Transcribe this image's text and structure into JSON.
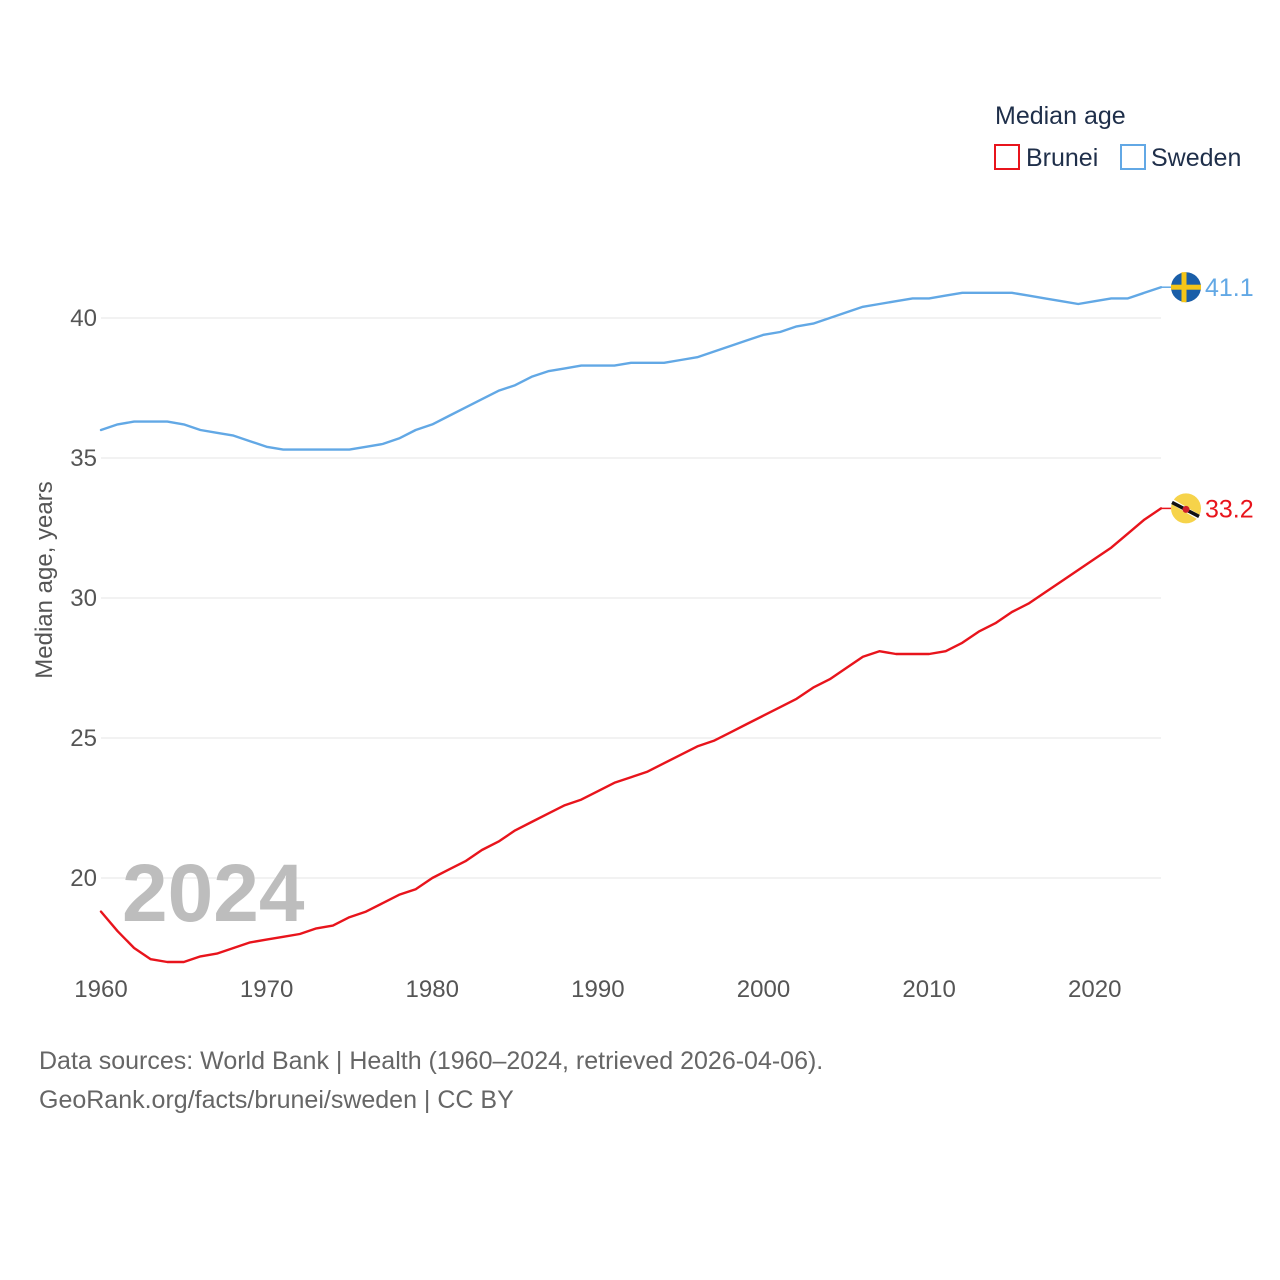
{
  "chart_data": {
    "type": "line",
    "title": "",
    "legend_title": "Median age",
    "ylabel": "Median age, years",
    "xlabel": "",
    "xlim": [
      1960,
      2024
    ],
    "ylim": [
      16,
      42.5
    ],
    "yticks": [
      20,
      25,
      30,
      35,
      40
    ],
    "xticks": [
      1960,
      1970,
      1980,
      1990,
      2000,
      2010,
      2020
    ],
    "year_label": "2024",
    "legend_position": "top-right",
    "grid": true,
    "x": [
      1960,
      1961,
      1962,
      1963,
      1964,
      1965,
      1966,
      1967,
      1968,
      1969,
      1970,
      1971,
      1972,
      1973,
      1974,
      1975,
      1976,
      1977,
      1978,
      1979,
      1980,
      1981,
      1982,
      1983,
      1984,
      1985,
      1986,
      1987,
      1988,
      1989,
      1990,
      1991,
      1992,
      1993,
      1994,
      1995,
      1996,
      1997,
      1998,
      1999,
      2000,
      2001,
      2002,
      2003,
      2004,
      2005,
      2006,
      2007,
      2008,
      2009,
      2010,
      2011,
      2012,
      2013,
      2014,
      2015,
      2016,
      2017,
      2018,
      2019,
      2020,
      2021,
      2022,
      2023,
      2024
    ],
    "series": [
      {
        "name": "Brunei",
        "color": "#e8141c",
        "end_value": "33.2",
        "values": [
          18.8,
          18.1,
          17.5,
          17.1,
          17.0,
          17.0,
          17.2,
          17.3,
          17.5,
          17.7,
          17.8,
          17.9,
          18.0,
          18.2,
          18.3,
          18.6,
          18.8,
          19.1,
          19.4,
          19.6,
          20.0,
          20.3,
          20.6,
          21.0,
          21.3,
          21.7,
          22.0,
          22.3,
          22.6,
          22.8,
          23.1,
          23.4,
          23.6,
          23.8,
          24.1,
          24.4,
          24.7,
          24.9,
          25.2,
          25.5,
          25.8,
          26.1,
          26.4,
          26.8,
          27.1,
          27.5,
          27.9,
          28.1,
          28.0,
          28.0,
          28.0,
          28.1,
          28.4,
          28.8,
          29.1,
          29.5,
          29.8,
          30.2,
          30.6,
          31.0,
          31.4,
          31.8,
          32.3,
          32.8,
          33.2
        ]
      },
      {
        "name": "Sweden",
        "color": "#62a8e5",
        "end_value": "41.1",
        "values": [
          36.0,
          36.2,
          36.3,
          36.3,
          36.3,
          36.2,
          36.0,
          35.9,
          35.8,
          35.6,
          35.4,
          35.3,
          35.3,
          35.3,
          35.3,
          35.3,
          35.4,
          35.5,
          35.7,
          36.0,
          36.2,
          36.5,
          36.8,
          37.1,
          37.4,
          37.6,
          37.9,
          38.1,
          38.2,
          38.3,
          38.3,
          38.3,
          38.4,
          38.4,
          38.4,
          38.5,
          38.6,
          38.8,
          39.0,
          39.2,
          39.4,
          39.5,
          39.7,
          39.8,
          40.0,
          40.2,
          40.4,
          40.5,
          40.6,
          40.7,
          40.7,
          40.8,
          40.9,
          40.9,
          40.9,
          40.9,
          40.8,
          40.7,
          40.6,
          40.5,
          40.6,
          40.7,
          40.7,
          40.9,
          41.1
        ]
      }
    ]
  },
  "footer": {
    "source_line": "Data sources: World Bank | Health (1960–2024, retrieved 2026-04-06).",
    "url_line": "GeoRank.org/facts/brunei/sweden | CC BY"
  }
}
